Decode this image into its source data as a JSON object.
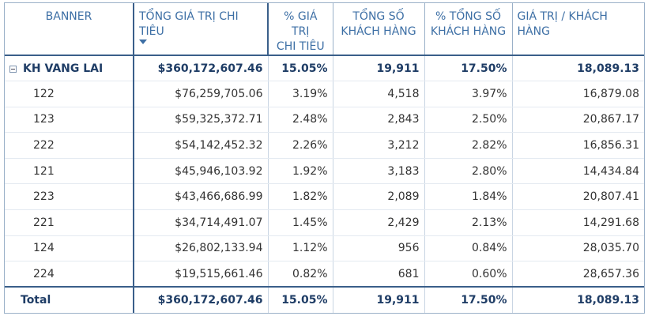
{
  "header": {
    "banner": "BANNER",
    "total_spend": "TỔNG GIÁ TRỊ CHI TIÊU",
    "pct_spend_line1": "% GIÁ TRỊ",
    "pct_spend_line2": "CHI TIÊU",
    "total_customers_line1": "TỔNG SỐ",
    "total_customers_line2": "KHÁCH HÀNG",
    "pct_customers_line1": "% TỔNG SỐ",
    "pct_customers_line2": "KHÁCH HÀNG",
    "value_per_customer": "GIÁ TRỊ / KHÁCH HÀNG",
    "sort_icon": "sort-descending-icon"
  },
  "group": {
    "label": "KH VANG LAI",
    "total_spend": "$360,172,607.46",
    "pct_spend": "15.05%",
    "customers": "19,911",
    "pct_customers": "17.50%",
    "value_per_customer": "18,089.13"
  },
  "rows": [
    {
      "banner": "122",
      "total_spend": "$76,259,705.06",
      "pct_spend": "3.19%",
      "customers": "4,518",
      "pct_customers": "3.97%",
      "value_per_customer": "16,879.08"
    },
    {
      "banner": "123",
      "total_spend": "$59,325,372.71",
      "pct_spend": "2.48%",
      "customers": "2,843",
      "pct_customers": "2.50%",
      "value_per_customer": "20,867.17"
    },
    {
      "banner": "222",
      "total_spend": "$54,142,452.32",
      "pct_spend": "2.26%",
      "customers": "3,212",
      "pct_customers": "2.82%",
      "value_per_customer": "16,856.31"
    },
    {
      "banner": "121",
      "total_spend": "$45,946,103.92",
      "pct_spend": "1.92%",
      "customers": "3,183",
      "pct_customers": "2.80%",
      "value_per_customer": "14,434.84"
    },
    {
      "banner": "223",
      "total_spend": "$43,466,686.99",
      "pct_spend": "1.82%",
      "customers": "2,089",
      "pct_customers": "1.84%",
      "value_per_customer": "20,807.41"
    },
    {
      "banner": "221",
      "total_spend": "$34,714,491.07",
      "pct_spend": "1.45%",
      "customers": "2,429",
      "pct_customers": "2.13%",
      "value_per_customer": "14,291.68"
    },
    {
      "banner": "124",
      "total_spend": "$26,802,133.94",
      "pct_spend": "1.12%",
      "customers": "956",
      "pct_customers": "0.84%",
      "value_per_customer": "28,035.70"
    },
    {
      "banner": "224",
      "total_spend": "$19,515,661.46",
      "pct_spend": "0.82%",
      "customers": "681",
      "pct_customers": "0.60%",
      "value_per_customer": "28,657.36"
    }
  ],
  "total": {
    "label": "Total",
    "total_spend": "$360,172,607.46",
    "pct_spend": "15.05%",
    "customers": "19,911",
    "pct_customers": "17.50%",
    "value_per_customer": "18,089.13"
  }
}
